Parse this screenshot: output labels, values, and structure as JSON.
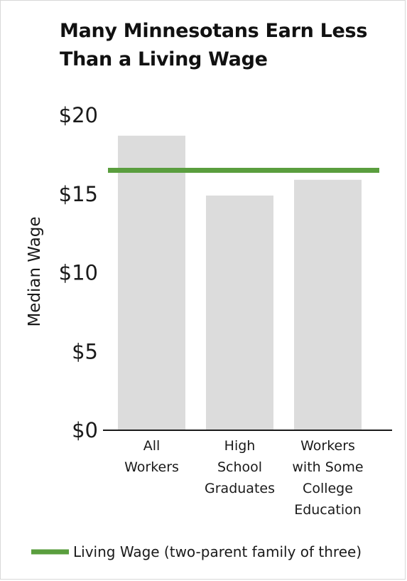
{
  "chart_data": {
    "type": "bar",
    "title_lines": [
      "Many Minnesotans Earn Less",
      "Than a Living Wage"
    ],
    "ylabel": "Median Wage",
    "yticks": [
      "$0",
      "$5",
      "$10",
      "$15",
      "$20"
    ],
    "ytick_values": [
      0,
      5,
      10,
      15,
      20
    ],
    "ylim": [
      0,
      20
    ],
    "categories": [
      [
        "All",
        "Workers"
      ],
      [
        "High",
        "School",
        "Graduates"
      ],
      [
        "Workers",
        "with Some",
        "College",
        "Education"
      ]
    ],
    "values": [
      18.7,
      14.9,
      15.9
    ],
    "reference_line": {
      "value": 16.5,
      "label": "Living Wage (two-parent family of three)"
    },
    "colors": {
      "bar": "#dcdcdc",
      "reference_line": "#5a9e3e",
      "axis": "#1a1a1a"
    },
    "grid": false,
    "legend_position": "bottom"
  }
}
